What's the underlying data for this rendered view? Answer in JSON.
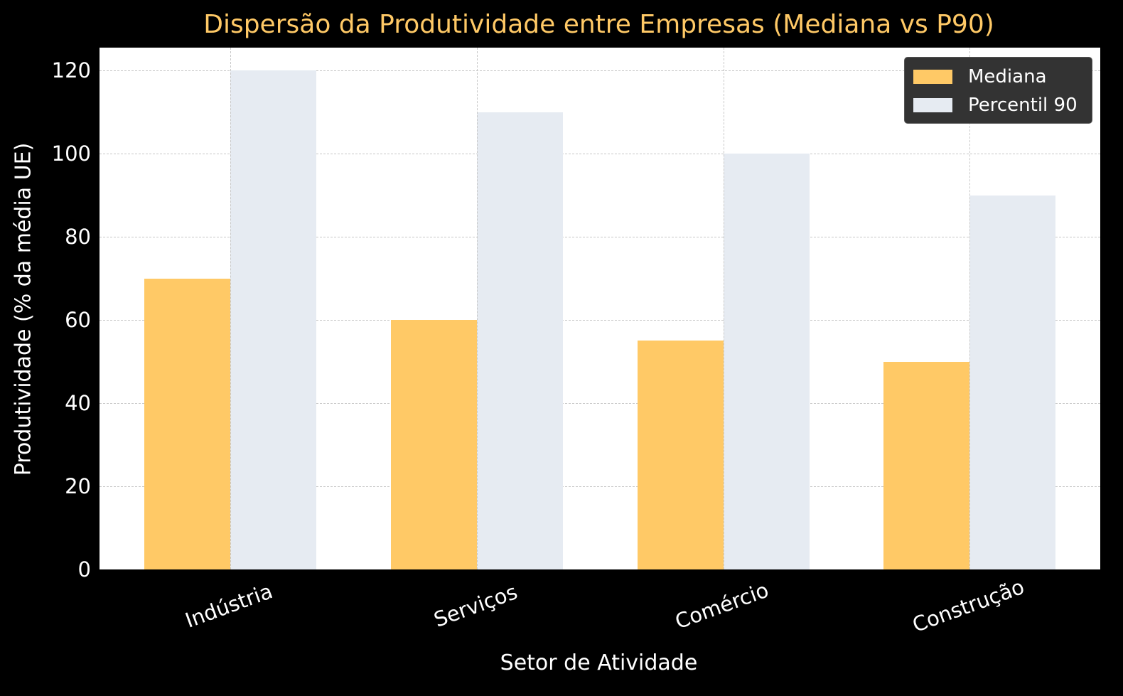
{
  "chart_data": {
    "type": "bar",
    "title": "Dispersão da Produtividade entre Empresas (Mediana vs P90)",
    "xlabel": "Setor de Atividade",
    "ylabel": "Produtividade (% da média UE)",
    "categories": [
      "Indústria",
      "Serviços",
      "Comércio",
      "Construção"
    ],
    "series": [
      {
        "name": "Mediana",
        "color": "#ffc966",
        "values": [
          70,
          60,
          55,
          50
        ]
      },
      {
        "name": "Percentil 90",
        "color": "#e6ebf2",
        "values": [
          120,
          110,
          100,
          90
        ]
      }
    ],
    "yticks": [
      "0",
      "20",
      "40",
      "60",
      "80",
      "100",
      "120"
    ],
    "ylim": [
      0,
      126
    ],
    "grid": true,
    "legend_position": "upper right",
    "xtick_rotation": -20
  }
}
